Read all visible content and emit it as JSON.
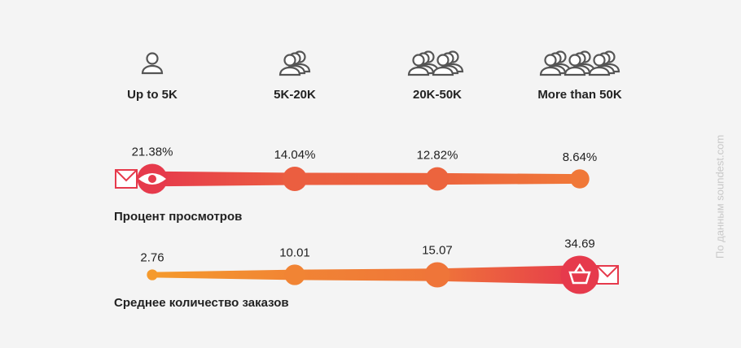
{
  "chart_data": {
    "type": "tapered-dots",
    "categories": [
      "Up to 5K",
      "5K-20K",
      "20K-50K",
      "More than 50K"
    ],
    "series": [
      {
        "name": "Процент просмотров",
        "values": [
          21.38,
          14.04,
          12.82,
          8.64
        ],
        "value_labels": [
          "21.38%",
          "14.04%",
          "12.82%",
          "8.64%"
        ]
      },
      {
        "name": "Среднее количество заказов",
        "values": [
          2.76,
          10.01,
          15.07,
          34.69
        ]
      }
    ],
    "colors": [
      "#f6a22a",
      "#e63a4c"
    ],
    "source": "По данным soundest.com"
  }
}
